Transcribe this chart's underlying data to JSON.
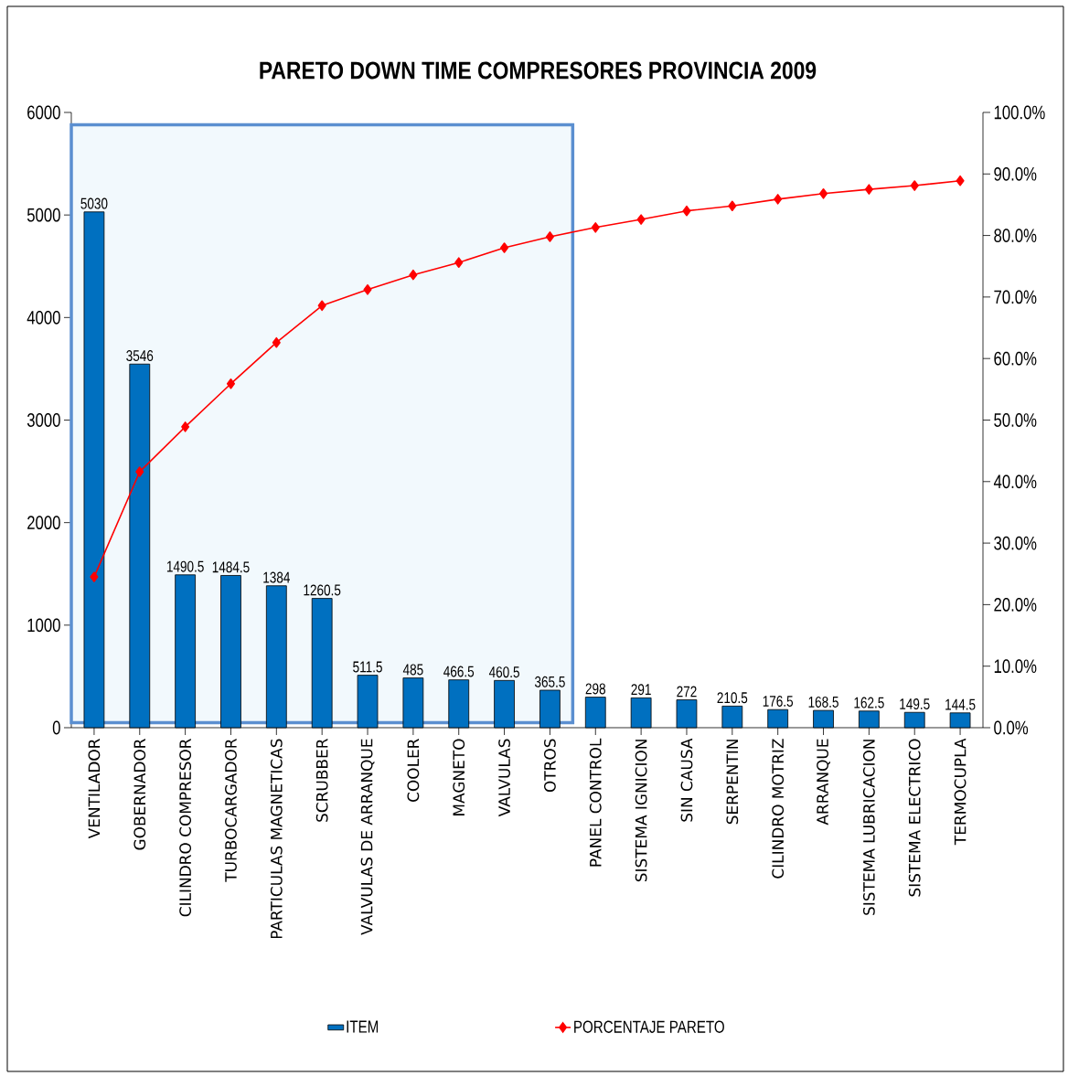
{
  "chart_data": {
    "type": "bar",
    "title": "PARETO DOWN TIME COMPRESORES  PROVINCIA  2009",
    "categories": [
      "VENTILADOR",
      "GOBERNADOR",
      "CILINDRO  COMPRESOR",
      "TURBOCARGADOR",
      "PARTICULAS  MAGNETICAS",
      "SCRUBBER",
      "VALVULAS  DE  ARRANQUE",
      "COOLER",
      "MAGNETO",
      "VALVULAS",
      "OTROS",
      "PANEL CONTROL",
      "SISTEMA  IGNICION",
      "SIN  CAUSA",
      "SERPENTIN",
      "CILINDRO  MOTRIZ",
      "ARRANQUE",
      "SISTEMA  LUBRICACION",
      "SISTEMA  ELECTRICO",
      "TERMOCUPLA"
    ],
    "series": [
      {
        "name": "ITEM",
        "color": "#0070c0",
        "values": [
          5030,
          3546,
          1490.5,
          1484.5,
          1384,
          1260.5,
          511.5,
          485,
          466.5,
          460.5,
          365.5,
          298,
          291,
          272,
          210.5,
          176.5,
          168.5,
          162.5,
          149.5,
          144.5
        ],
        "value_labels": [
          "5030",
          "3546",
          "1490.5",
          "1484.5",
          "1384",
          "1260.5",
          "511.5",
          "485",
          "466.5",
          "460.5",
          "365.5",
          "298",
          "291",
          "272",
          "210.5",
          "176.5",
          "168.5",
          "162.5",
          "149.5",
          "144.5"
        ]
      },
      {
        "name": "PORCENTAJE PARETO",
        "type": "line",
        "axis": "y2",
        "color": "#ff0000",
        "marker": "diamond",
        "values": [
          24.5,
          41.6,
          48.9,
          55.9,
          62.6,
          68.6,
          71.2,
          73.6,
          75.6,
          78.0,
          79.8,
          81.3,
          82.6,
          84.0,
          84.8,
          85.9,
          86.8,
          87.5,
          88.1,
          88.9
        ]
      }
    ],
    "ylim": [
      0,
      6000
    ],
    "yticks": [
      0,
      1000,
      2000,
      3000,
      4000,
      5000,
      6000
    ],
    "y2lim": [
      0,
      100
    ],
    "y2ticks": [
      {
        "value": 0,
        "label": "0.0%"
      },
      {
        "value": 10,
        "label": "10.0%"
      },
      {
        "value": 20,
        "label": "20.0%"
      },
      {
        "value": 30,
        "label": "30.0%"
      },
      {
        "value": 40,
        "label": "40.0%"
      },
      {
        "value": 50,
        "label": "50.0%"
      },
      {
        "value": 60,
        "label": "60.0%"
      },
      {
        "value": 70,
        "label": "70.0%"
      },
      {
        "value": 80,
        "label": "80.0%"
      },
      {
        "value": 90,
        "label": "90.0%"
      },
      {
        "value": 100,
        "label": "100.0%"
      }
    ],
    "bands": [
      {
        "axis": "x",
        "from": "VENTILADOR",
        "to": "OTROS",
        "color": "#f2f9fd"
      }
    ],
    "grid": false,
    "legend": "bottom"
  }
}
